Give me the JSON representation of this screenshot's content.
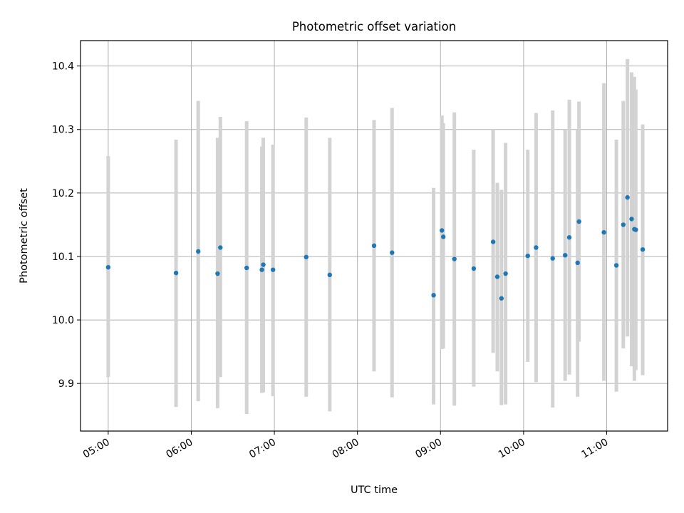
{
  "chart_data": {
    "type": "scatter",
    "title": "Photometric offset variation",
    "xlabel": "UTC time",
    "ylabel": "Photometric offset",
    "xlim": [
      "04:40",
      "11:44"
    ],
    "ylim": [
      9.825,
      10.44
    ],
    "grid": true,
    "xticks": [
      "05:00",
      "06:00",
      "07:00",
      "08:00",
      "09:00",
      "10:00",
      "11:00"
    ],
    "yticks": [
      "9.9",
      "10.0",
      "10.1",
      "10.2",
      "10.3",
      "10.4"
    ],
    "colors": {
      "point": "#1f77b4",
      "errorbar": "#d3d3d3",
      "grid": "#b0b0b0"
    },
    "points": [
      {
        "x": "05:00",
        "y": 10.083,
        "lo": 9.91,
        "hi": 10.258
      },
      {
        "x": "05:49",
        "y": 10.074,
        "lo": 9.863,
        "hi": 10.284
      },
      {
        "x": "06:05",
        "y": 10.108,
        "lo": 9.872,
        "hi": 10.345
      },
      {
        "x": "06:19",
        "y": 10.073,
        "lo": 9.861,
        "hi": 10.287
      },
      {
        "x": "06:21",
        "y": 10.114,
        "lo": 9.91,
        "hi": 10.32
      },
      {
        "x": "06:40",
        "y": 10.082,
        "lo": 9.852,
        "hi": 10.313
      },
      {
        "x": "06:51",
        "y": 10.079,
        "lo": 9.885,
        "hi": 10.273
      },
      {
        "x": "06:52",
        "y": 10.087,
        "lo": 9.886,
        "hi": 10.287
      },
      {
        "x": "06:59",
        "y": 10.079,
        "lo": 9.88,
        "hi": 10.276
      },
      {
        "x": "07:23",
        "y": 10.099,
        "lo": 9.879,
        "hi": 10.319
      },
      {
        "x": "07:40",
        "y": 10.071,
        "lo": 9.856,
        "hi": 10.287
      },
      {
        "x": "08:12",
        "y": 10.117,
        "lo": 9.919,
        "hi": 10.315
      },
      {
        "x": "08:25",
        "y": 10.106,
        "lo": 9.878,
        "hi": 10.334
      },
      {
        "x": "08:55",
        "y": 10.039,
        "lo": 9.867,
        "hi": 10.208
      },
      {
        "x": "09:01",
        "y": 10.141,
        "lo": 9.954,
        "hi": 10.322
      },
      {
        "x": "09:02",
        "y": 10.131,
        "lo": 9.955,
        "hi": 10.31
      },
      {
        "x": "09:10",
        "y": 10.096,
        "lo": 9.865,
        "hi": 10.327
      },
      {
        "x": "09:24",
        "y": 10.081,
        "lo": 9.895,
        "hi": 10.268
      },
      {
        "x": "09:38",
        "y": 10.123,
        "lo": 9.948,
        "hi": 10.3
      },
      {
        "x": "09:41",
        "y": 10.068,
        "lo": 9.919,
        "hi": 10.216
      },
      {
        "x": "09:44",
        "y": 10.034,
        "lo": 9.866,
        "hi": 10.205
      },
      {
        "x": "09:47",
        "y": 10.073,
        "lo": 9.867,
        "hi": 10.279
      },
      {
        "x": "10:03",
        "y": 10.101,
        "lo": 9.934,
        "hi": 10.268
      },
      {
        "x": "10:09",
        "y": 10.114,
        "lo": 9.902,
        "hi": 10.326
      },
      {
        "x": "10:21",
        "y": 10.097,
        "lo": 9.862,
        "hi": 10.33
      },
      {
        "x": "10:30",
        "y": 10.102,
        "lo": 9.904,
        "hi": 10.3
      },
      {
        "x": "10:33",
        "y": 10.13,
        "lo": 9.914,
        "hi": 10.347
      },
      {
        "x": "10:39",
        "y": 10.09,
        "lo": 9.879,
        "hi": 10.3
      },
      {
        "x": "10:40",
        "y": 10.155,
        "lo": 9.966,
        "hi": 10.344
      },
      {
        "x": "10:58",
        "y": 10.138,
        "lo": 9.904,
        "hi": 10.373
      },
      {
        "x": "11:07",
        "y": 10.086,
        "lo": 9.887,
        "hi": 10.284
      },
      {
        "x": "11:12",
        "y": 10.15,
        "lo": 9.955,
        "hi": 10.345
      },
      {
        "x": "11:15",
        "y": 10.193,
        "lo": 9.974,
        "hi": 10.411
      },
      {
        "x": "11:18",
        "y": 10.159,
        "lo": 9.927,
        "hi": 10.39
      },
      {
        "x": "11:20",
        "y": 10.143,
        "lo": 9.904,
        "hi": 10.383
      },
      {
        "x": "11:21",
        "y": 10.142,
        "lo": 9.921,
        "hi": 10.363
      },
      {
        "x": "11:26",
        "y": 10.111,
        "lo": 9.913,
        "hi": 10.308
      }
    ]
  }
}
